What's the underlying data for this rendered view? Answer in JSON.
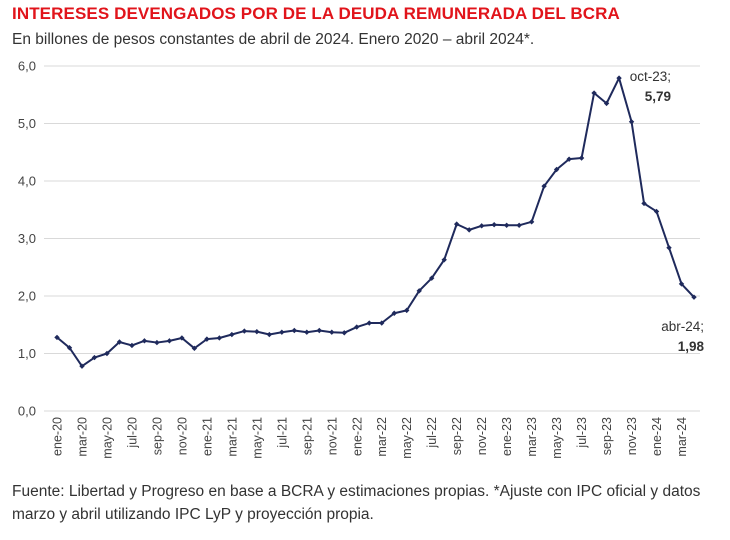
{
  "title": "INTERESES DEVENGADOS POR DE LA DEUDA REMUNERADA DEL BCRA",
  "subtitle": "En billones de pesos constantes de abril de 2024. Enero 2020 – abril 2024*.",
  "source": "Fuente: Libertad y Progreso en base a BCRA y estimaciones propias. *Ajuste con IPC oficial y datos marzo y abril utilizando IPC LyP y proyección propia.",
  "colors": {
    "title": "#e1141b",
    "series": "#1f2a5c",
    "grid": "#d9d9d9"
  },
  "chart_data": {
    "type": "line",
    "ylim": [
      0,
      6
    ],
    "yticks": [
      "0,0",
      "1,0",
      "2,0",
      "3,0",
      "4,0",
      "5,0",
      "6,0"
    ],
    "grid": true,
    "x": [
      "ene-20",
      "feb-20",
      "mar-20",
      "abr-20",
      "may-20",
      "jun-20",
      "jul-20",
      "ago-20",
      "sep-20",
      "oct-20",
      "nov-20",
      "dic-20",
      "ene-21",
      "feb-21",
      "mar-21",
      "abr-21",
      "may-21",
      "jun-21",
      "jul-21",
      "ago-21",
      "sep-21",
      "oct-21",
      "nov-21",
      "dic-21",
      "ene-22",
      "feb-22",
      "mar-22",
      "abr-22",
      "may-22",
      "jun-22",
      "jul-22",
      "ago-22",
      "sep-22",
      "oct-22",
      "nov-22",
      "dic-22",
      "ene-23",
      "feb-23",
      "mar-23",
      "abr-23",
      "may-23",
      "jun-23",
      "jul-23",
      "ago-23",
      "sep-23",
      "oct-23",
      "nov-23",
      "dic-23",
      "ene-24",
      "feb-24",
      "mar-24",
      "abr-24"
    ],
    "x_tick_labels": [
      "ene-20",
      "mar-20",
      "may-20",
      "jul-20",
      "sep-20",
      "nov-20",
      "ene-21",
      "mar-21",
      "may-21",
      "jul-21",
      "sep-21",
      "nov-21",
      "ene-22",
      "mar-22",
      "may-22",
      "jul-22",
      "sep-22",
      "nov-22",
      "ene-23",
      "mar-23",
      "may-23",
      "jul-23",
      "sep-23",
      "nov-23",
      "ene-24",
      "mar-24"
    ],
    "series": [
      {
        "values": [
          1.28,
          1.1,
          0.78,
          0.93,
          1.0,
          1.2,
          1.14,
          1.22,
          1.19,
          1.22,
          1.27,
          1.09,
          1.25,
          1.27,
          1.33,
          1.39,
          1.38,
          1.33,
          1.37,
          1.4,
          1.37,
          1.4,
          1.37,
          1.36,
          1.46,
          1.53,
          1.53,
          1.7,
          1.75,
          2.09,
          2.31,
          2.63,
          3.25,
          3.15,
          3.22,
          3.24,
          3.23,
          3.23,
          3.29,
          3.91,
          4.2,
          4.38,
          4.4,
          5.53,
          5.35,
          5.79,
          5.03,
          3.61,
          3.47,
          2.84,
          2.21,
          1.98
        ]
      }
    ],
    "annotations": [
      {
        "period": "oct-23",
        "value": "5,79"
      },
      {
        "period": "abr-24",
        "value": "1,98"
      }
    ]
  }
}
